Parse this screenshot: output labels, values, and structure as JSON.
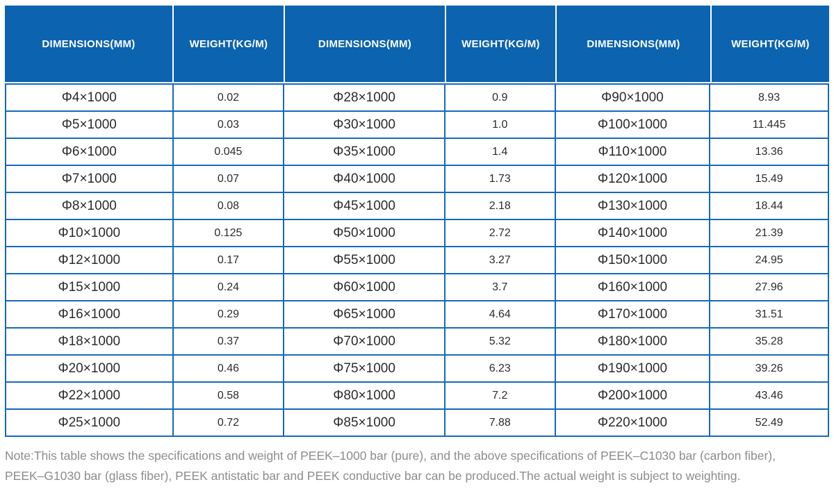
{
  "colors": {
    "header_bg": "#0c63b0",
    "header_text": "#ffffff",
    "grid_border": "#1668bf",
    "cell_text": "#2b2b2b",
    "note_text": "#8c8c8c",
    "page_bg": "#ffffff"
  },
  "table": {
    "columns": [
      {
        "key": "dim",
        "label": "DIMENSIONS(MM)"
      },
      {
        "key": "wt",
        "label": "WEIGHT(KG/M)"
      },
      {
        "key": "dim",
        "label": "DIMENSIONS(MM)"
      },
      {
        "key": "wt",
        "label": "WEIGHT(KG/M)"
      },
      {
        "key": "dim",
        "label": "DIMENSIONS(MM)"
      },
      {
        "key": "wt",
        "label": "WEIGHT(KG/M)"
      }
    ],
    "rows": [
      [
        "Φ4×1000",
        "0.02",
        "Φ28×1000",
        "0.9",
        "Φ90×1000",
        "8.93"
      ],
      [
        "Φ5×1000",
        "0.03",
        "Φ30×1000",
        "1.0",
        "Φ100×1000",
        "11.445"
      ],
      [
        "Φ6×1000",
        "0.045",
        "Φ35×1000",
        "1.4",
        "Φ110×1000",
        "13.36"
      ],
      [
        "Φ7×1000",
        "0.07",
        "Φ40×1000",
        "1.73",
        "Φ120×1000",
        "15.49"
      ],
      [
        "Φ8×1000",
        "0.08",
        "Φ45×1000",
        "2.18",
        "Φ130×1000",
        "18.44"
      ],
      [
        "Φ10×1000",
        "0.125",
        "Φ50×1000",
        "2.72",
        "Φ140×1000",
        "21.39"
      ],
      [
        "Φ12×1000",
        "0.17",
        "Φ55×1000",
        "3.27",
        "Φ150×1000",
        "24.95"
      ],
      [
        "Φ15×1000",
        "0.24",
        "Φ60×1000",
        "3.7",
        "Φ160×1000",
        "27.96"
      ],
      [
        "Φ16×1000",
        "0.29",
        "Φ65×1000",
        "4.64",
        "Φ170×1000",
        "31.51"
      ],
      [
        "Φ18×1000",
        "0.37",
        "Φ70×1000",
        "5.32",
        "Φ180×1000",
        "35.28"
      ],
      [
        "Φ20×1000",
        "0.46",
        "Φ75×1000",
        "6.23",
        "Φ190×1000",
        "39.26"
      ],
      [
        "Φ22×1000",
        "0.58",
        "Φ80×1000",
        "7.2",
        "Φ200×1000",
        "43.46"
      ],
      [
        "Φ25×1000",
        "0.72",
        "Φ85×1000",
        "7.88",
        "Φ220×1000",
        "52.49"
      ]
    ]
  },
  "note": {
    "lines": [
      "Note:This table shows the specifications and weight of PEEK–1000 bar (pure), and the above specifications of PEEK–C1030 bar (carbon fiber),",
      "PEEK–G1030 bar (glass fiber), PEEK antistatic bar and PEEK conductive bar can be produced.The actual weight is subject to weighting."
    ]
  }
}
